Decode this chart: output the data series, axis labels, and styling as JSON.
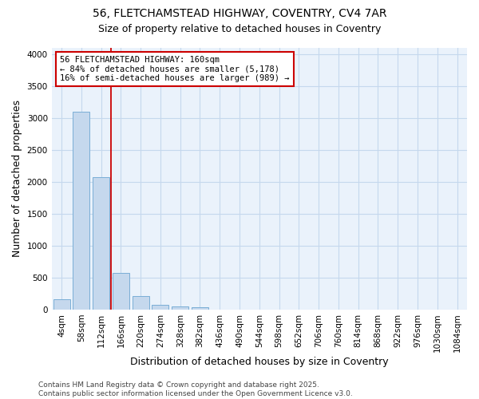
{
  "title_line1": "56, FLETCHAMSTEAD HIGHWAY, COVENTRY, CV4 7AR",
  "title_line2": "Size of property relative to detached houses in Coventry",
  "xlabel": "Distribution of detached houses by size in Coventry",
  "ylabel": "Number of detached properties",
  "categories": [
    "4sqm",
    "58sqm",
    "112sqm",
    "166sqm",
    "220sqm",
    "274sqm",
    "328sqm",
    "382sqm",
    "436sqm",
    "490sqm",
    "544sqm",
    "598sqm",
    "652sqm",
    "706sqm",
    "760sqm",
    "814sqm",
    "868sqm",
    "922sqm",
    "976sqm",
    "1030sqm",
    "1084sqm"
  ],
  "values": [
    160,
    3100,
    2080,
    570,
    210,
    75,
    45,
    35,
    0,
    0,
    0,
    0,
    0,
    0,
    0,
    0,
    0,
    0,
    0,
    0,
    0
  ],
  "bar_color": "#c5d8ed",
  "bar_edge_color": "#7aaed6",
  "vline_color": "#cc0000",
  "annotation_line1": "56 FLETCHAMSTEAD HIGHWAY: 160sqm",
  "annotation_line2": "← 84% of detached houses are smaller (5,178)",
  "annotation_line3": "16% of semi-detached houses are larger (989) →",
  "annotation_box_color": "#ffffff",
  "annotation_box_edge_color": "#cc0000",
  "ylim": [
    0,
    4100
  ],
  "yticks": [
    0,
    500,
    1000,
    1500,
    2000,
    2500,
    3000,
    3500,
    4000
  ],
  "footer_line1": "Contains HM Land Registry data © Crown copyright and database right 2025.",
  "footer_line2": "Contains public sector information licensed under the Open Government Licence v3.0.",
  "plot_bg_color": "#eaf2fb",
  "background_color": "#ffffff",
  "grid_color": "#c5d8ed",
  "title_fontsize": 10,
  "subtitle_fontsize": 9,
  "axis_label_fontsize": 9,
  "tick_fontsize": 7.5,
  "annotation_fontsize": 7.5,
  "footer_fontsize": 6.5
}
